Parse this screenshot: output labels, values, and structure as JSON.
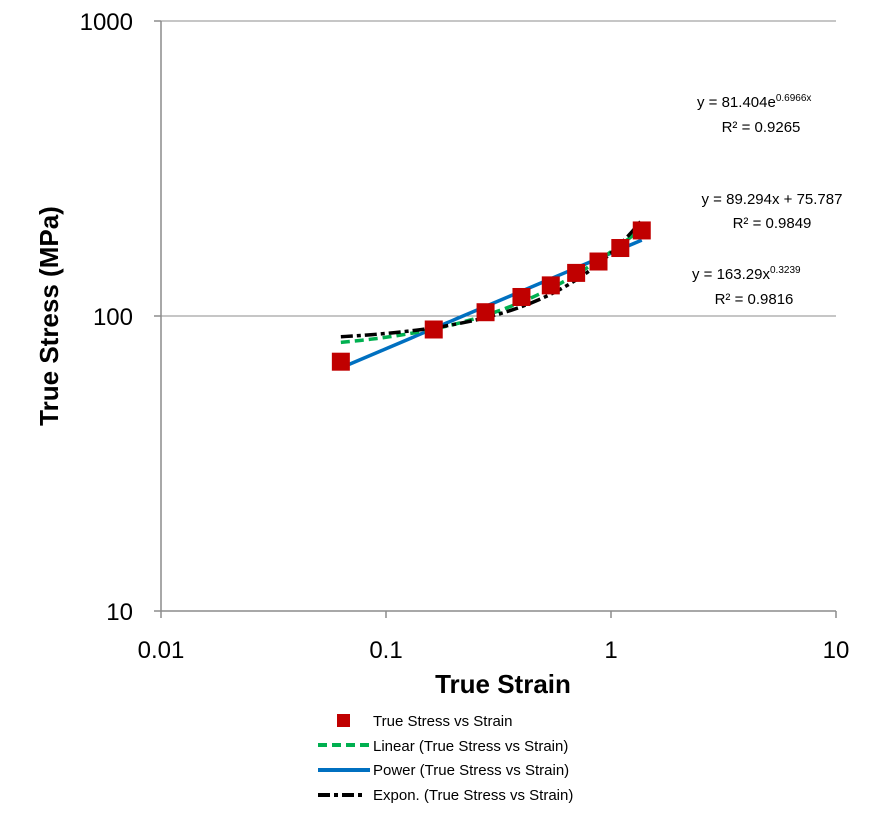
{
  "chart_data": {
    "type": "scatter",
    "xscale": "log",
    "yscale": "log",
    "xlim": [
      0.01,
      10
    ],
    "ylim": [
      10,
      1000
    ],
    "xlabel": "True Strain",
    "ylabel": "True Stress (MPa)",
    "grid": "horizontal major gridlines",
    "x_ticks": [
      "0.01",
      "0.1",
      "1",
      "10"
    ],
    "y_ticks": [
      "10",
      "100",
      "1000"
    ],
    "series": [
      {
        "name": "True Stress vs Strain",
        "kind": "markers",
        "marker": "square",
        "color": "#c00000",
        "x": [
          0.063,
          0.163,
          0.277,
          0.4,
          0.54,
          0.7,
          0.88,
          1.1,
          1.37
        ],
        "y": [
          70,
          90,
          103,
          116,
          127,
          140,
          153,
          170,
          195
        ]
      },
      {
        "name": "Linear (True Stress vs Strain)",
        "kind": "trendline",
        "style": "dashed",
        "color": "#00b050",
        "equation": "y = 89.294x + 75.787",
        "r2": "R² = 0.9849"
      },
      {
        "name": "Power (True Stress vs Strain)",
        "kind": "trendline",
        "style": "solid",
        "color": "#0070c0",
        "equation": "y = 163.29x^0.3239",
        "r2": "R² = 0.9816"
      },
      {
        "name": "Expon. (True Stress vs Strain)",
        "kind": "trendline",
        "style": "dash-dot",
        "color": "#000000",
        "equation": "y = 81.404e^0.6966x",
        "r2": "R² = 0.9265"
      }
    ],
    "annotations": {
      "expon_eq_base": "y = 81.404e",
      "expon_eq_exp": "0.6966x",
      "expon_r2": "R² = 0.9265",
      "linear_eq": "y = 89.294x + 75.787",
      "linear_r2": "R² = 0.9849",
      "power_eq_base": "y = 163.29x",
      "power_eq_exp": "0.3239",
      "power_r2": "R² = 0.9816"
    },
    "legend": {
      "placement": "bottom",
      "entries": [
        "True Stress vs Strain",
        "Linear (True Stress vs Strain)",
        "Power (True Stress vs Strain)",
        "Expon. (True Stress vs Strain)"
      ]
    }
  }
}
